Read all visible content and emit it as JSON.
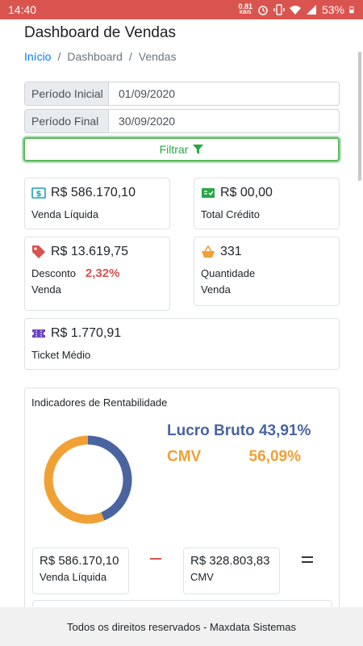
{
  "status_bar": {
    "time": "14:40",
    "net_speed": "0.81",
    "net_unit": "KB/S",
    "battery": "53%"
  },
  "header": {
    "title": "Dashboard de Vendas",
    "breadcrumb": [
      "Início",
      "Dashboard",
      "Vendas"
    ]
  },
  "filters": {
    "start_label": "Período Inicial",
    "start_value": "01/09/2020",
    "end_label": "Período Final",
    "end_value": "30/09/2020",
    "button_label": "Filtrar"
  },
  "cards": {
    "venda_liquida": {
      "value": "R$ 586.170,10",
      "label": "Venda Líquida"
    },
    "total_credito": {
      "value": "R$ 00,00",
      "label": "Total Crédito"
    },
    "desconto": {
      "value": "R$ 13.619,75",
      "label_line1": "Desconto",
      "percent": "2,32%",
      "label_line2": "Venda"
    },
    "quantidade": {
      "value": "331",
      "label_line1": "Quantidade",
      "label_line2": "Venda"
    },
    "ticket": {
      "value": "R$ 1.770,91",
      "label": "Ticket Médio"
    }
  },
  "rentabilidade": {
    "title": "Indicadores de Rentabilidade",
    "lucro_label": "Lucro Bruto 43,91%",
    "cmv_label": "CMV",
    "cmv_percent": "56,09%",
    "donut": {
      "lucro_fraction": 0.4391,
      "cmv_fraction": 0.5609,
      "lucro_color": "#4a64a0",
      "cmv_color": "#f0a034"
    },
    "venda_box": {
      "value": "R$ 586.170,10",
      "label": "Venda Líquida"
    },
    "cmv_box": {
      "value": "R$ 328.803,83",
      "label": "CMV"
    }
  },
  "footer": {
    "text": "Todos os direitos reservados - ",
    "brand": "Maxdata Sistemas"
  }
}
